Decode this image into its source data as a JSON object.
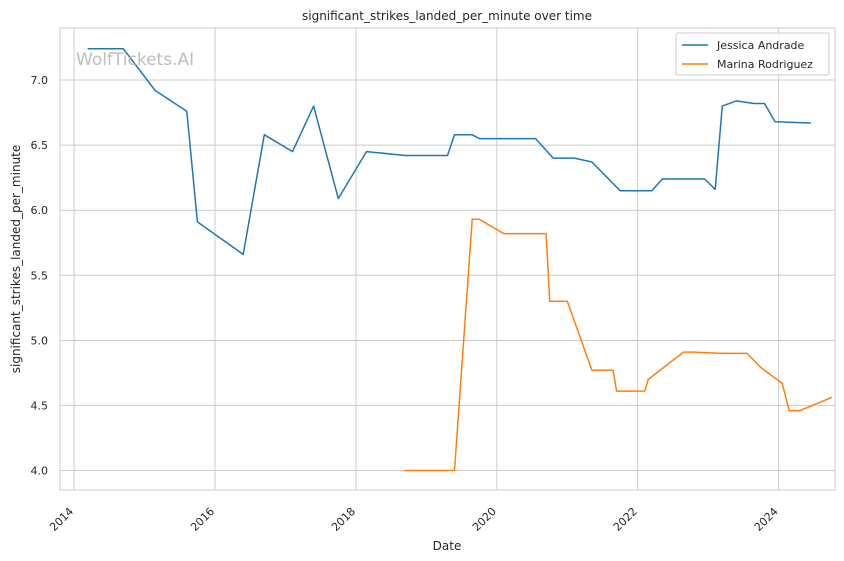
{
  "chart_data": {
    "type": "line",
    "title": "significant_strikes_landed_per_minute over time",
    "xlabel": "Date",
    "ylabel": "significant_strikes_landed_per_minute",
    "watermark": "WolfTickets.AI",
    "xlim": [
      2013.8,
      2024.8
    ],
    "ylim": [
      3.85,
      7.4
    ],
    "x_ticks": [
      2014,
      2016,
      2018,
      2020,
      2022,
      2024
    ],
    "x_tick_labels": [
      "2014",
      "2016",
      "2018",
      "2020",
      "2022",
      "2024"
    ],
    "y_ticks": [
      4.0,
      4.5,
      5.0,
      5.5,
      6.0,
      6.5,
      7.0
    ],
    "y_tick_labels": [
      "4.0",
      "4.5",
      "5.0",
      "5.5",
      "6.0",
      "6.5",
      "7.0"
    ],
    "grid": true,
    "legend_position": "top-right",
    "series": [
      {
        "name": "Jessica Andrade",
        "color": "#1f77b4",
        "points": [
          [
            2014.2,
            7.24
          ],
          [
            2014.7,
            7.24
          ],
          [
            2015.15,
            6.92
          ],
          [
            2015.6,
            6.76
          ],
          [
            2015.75,
            5.91
          ],
          [
            2016.4,
            5.66
          ],
          [
            2016.7,
            6.58
          ],
          [
            2017.1,
            6.45
          ],
          [
            2017.4,
            6.8
          ],
          [
            2017.75,
            6.09
          ],
          [
            2018.15,
            6.45
          ],
          [
            2018.7,
            6.42
          ],
          [
            2019.3,
            6.42
          ],
          [
            2019.4,
            6.58
          ],
          [
            2019.65,
            6.58
          ],
          [
            2019.75,
            6.55
          ],
          [
            2020.55,
            6.55
          ],
          [
            2020.8,
            6.4
          ],
          [
            2021.1,
            6.4
          ],
          [
            2021.35,
            6.37
          ],
          [
            2021.75,
            6.15
          ],
          [
            2022.2,
            6.15
          ],
          [
            2022.35,
            6.24
          ],
          [
            2022.95,
            6.24
          ],
          [
            2023.1,
            6.16
          ],
          [
            2023.2,
            6.8
          ],
          [
            2023.4,
            6.84
          ],
          [
            2023.65,
            6.82
          ],
          [
            2023.8,
            6.82
          ],
          [
            2023.95,
            6.68
          ],
          [
            2024.45,
            6.67
          ]
        ]
      },
      {
        "name": "Marina Rodriguez",
        "color": "#ff7f0e",
        "points": [
          [
            2018.7,
            4.0
          ],
          [
            2019.4,
            4.0
          ],
          [
            2019.65,
            5.93
          ],
          [
            2019.75,
            5.93
          ],
          [
            2020.1,
            5.82
          ],
          [
            2020.7,
            5.82
          ],
          [
            2020.75,
            5.3
          ],
          [
            2021.0,
            5.3
          ],
          [
            2021.35,
            4.77
          ],
          [
            2021.65,
            4.77
          ],
          [
            2021.7,
            4.61
          ],
          [
            2022.1,
            4.61
          ],
          [
            2022.15,
            4.7
          ],
          [
            2022.65,
            4.91
          ],
          [
            2022.8,
            4.91
          ],
          [
            2023.2,
            4.9
          ],
          [
            2023.55,
            4.9
          ],
          [
            2023.75,
            4.79
          ],
          [
            2024.05,
            4.67
          ],
          [
            2024.15,
            4.46
          ],
          [
            2024.3,
            4.46
          ],
          [
            2024.75,
            4.56
          ]
        ]
      }
    ]
  }
}
